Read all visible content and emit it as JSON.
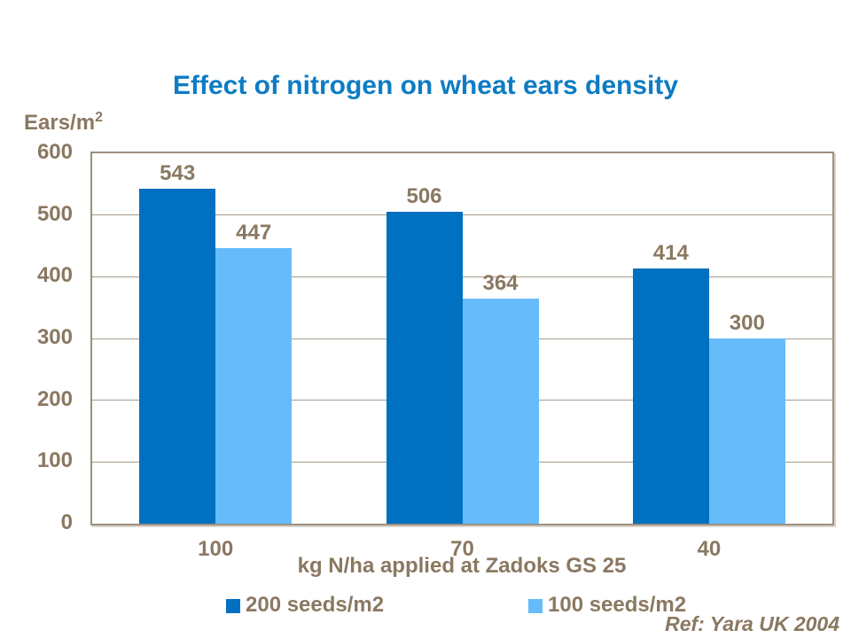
{
  "title": "Effect of nitrogen on wheat ears density",
  "y_axis_unit": {
    "base": "Ears/m",
    "superscript": "2"
  },
  "ref_note": "Ref: Yara UK 2004",
  "colors": {
    "title_blue": "#0d7cc4",
    "series_dark_blue": "#0070c0",
    "series_light_blue": "#66bcfa",
    "text_brown": "#8a7861",
    "plot_border_tan": "#9c9080",
    "gridline_tan": "#a89b8a"
  },
  "chart_data": {
    "type": "bar",
    "title": "Effect of nitrogen on wheat ears density",
    "categories": [
      "100",
      "70",
      "40"
    ],
    "series": [
      {
        "name": "200 seeds/m2",
        "color": "#0070c0",
        "values": [
          543,
          506,
          414
        ]
      },
      {
        "name": "100 seeds/m2",
        "color": "#66bcfa",
        "values": [
          447,
          364,
          300
        ]
      }
    ],
    "xlabel": "kg N/ha applied at Zadoks GS 25",
    "ylabel": "Ears/m2",
    "ylim": [
      0,
      600
    ],
    "ytick_interval": 100,
    "yticks": [
      600,
      500,
      400,
      300,
      200,
      100,
      0
    ],
    "grid": true,
    "data_labels": true,
    "legend_position": "bottom"
  }
}
